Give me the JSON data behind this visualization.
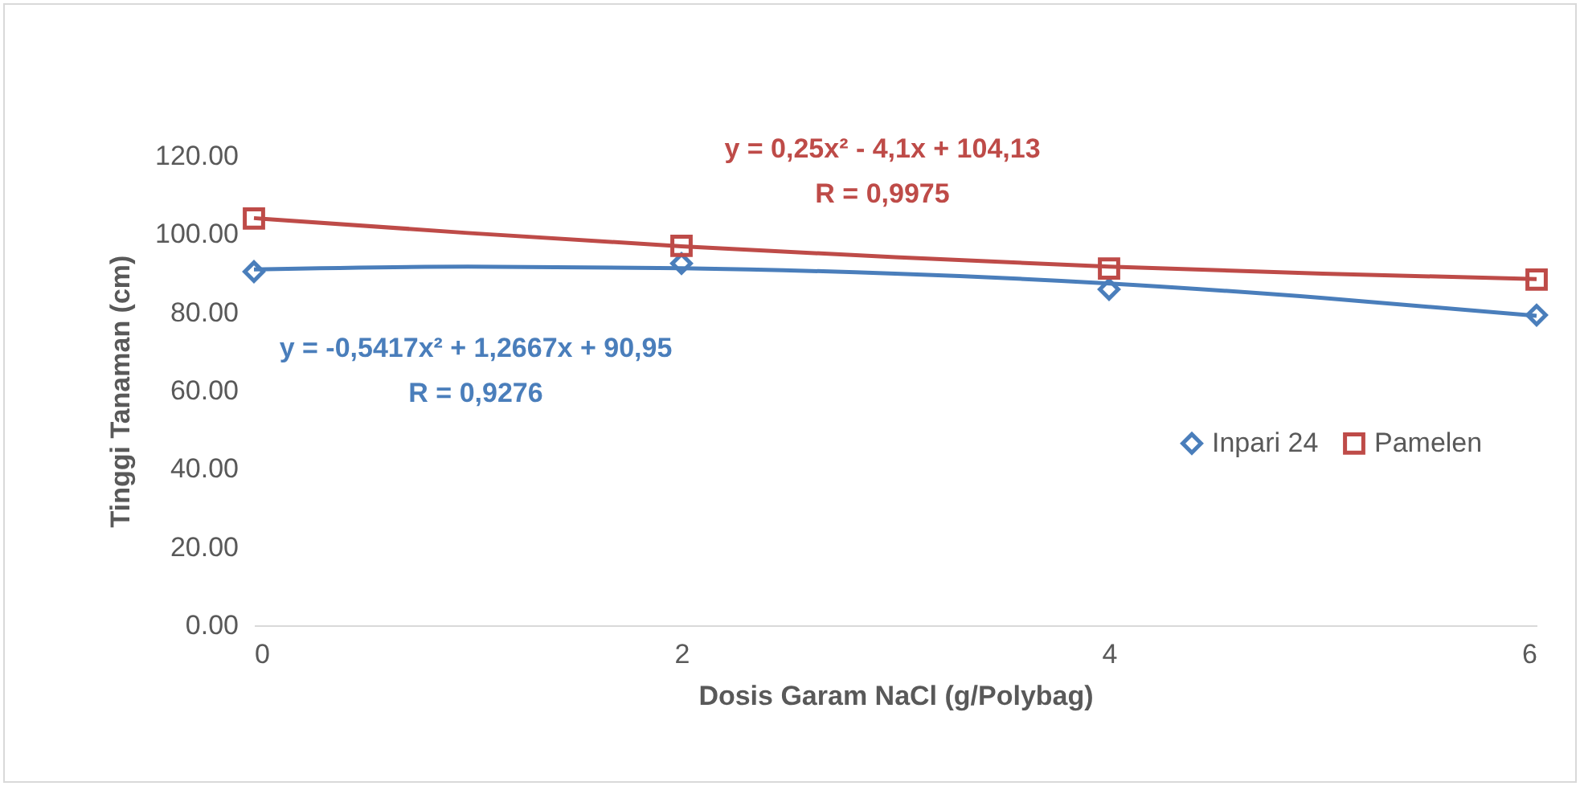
{
  "chart_data": {
    "type": "scatter",
    "xlabel": "Dosis Garam NaCl (g/Polybag)",
    "ylabel": "Tinggi Tanaman (cm)",
    "xlim": [
      0,
      6
    ],
    "xticks": [
      0,
      2,
      4,
      6
    ],
    "ylim": [
      0,
      120
    ],
    "yticks": [
      {
        "value": 0,
        "label": "0.00"
      },
      {
        "value": 20,
        "label": "20.00"
      },
      {
        "value": 40,
        "label": "40.00"
      },
      {
        "value": 60,
        "label": "60.00"
      },
      {
        "value": 80,
        "label": "80.00"
      },
      {
        "value": 100,
        "label": "100.00"
      },
      {
        "value": 120,
        "label": "120.00"
      }
    ],
    "grid": false,
    "legend": "right",
    "series": [
      {
        "name": "Inpari 24",
        "marker": "diamond",
        "color": "#4a7ebb",
        "x": [
          0,
          2,
          4,
          6
        ],
        "values": [
          90.4,
          92.5,
          85.9,
          79.3
        ]
      },
      {
        "name": "Pamelen",
        "marker": "square",
        "color": "#be4b48",
        "x": [
          0,
          2,
          4,
          6
        ],
        "values": [
          104.0,
          97.0,
          91.2,
          88.4
        ]
      },
      {
        "type": "line",
        "color": "#4a7ebb",
        "x": [
          0,
          1,
          2,
          3,
          4,
          5,
          6
        ],
        "values": [
          91.0,
          91.7,
          91.3,
          89.9,
          87.4,
          83.7,
          79.1
        ]
      },
      {
        "type": "line",
        "color": "#be4b48",
        "x": [
          0,
          1,
          2,
          3,
          4,
          5,
          6
        ],
        "values": [
          104.1,
          100.3,
          96.9,
          94.1,
          91.7,
          89.9,
          88.5
        ]
      }
    ],
    "annotations": [
      "y = -0,5417x² + 1,2667x + 90,95",
      "R = 0,9276",
      "y = 0,25x² - 4,1x + 104,13",
      "R = 0,9975"
    ]
  }
}
